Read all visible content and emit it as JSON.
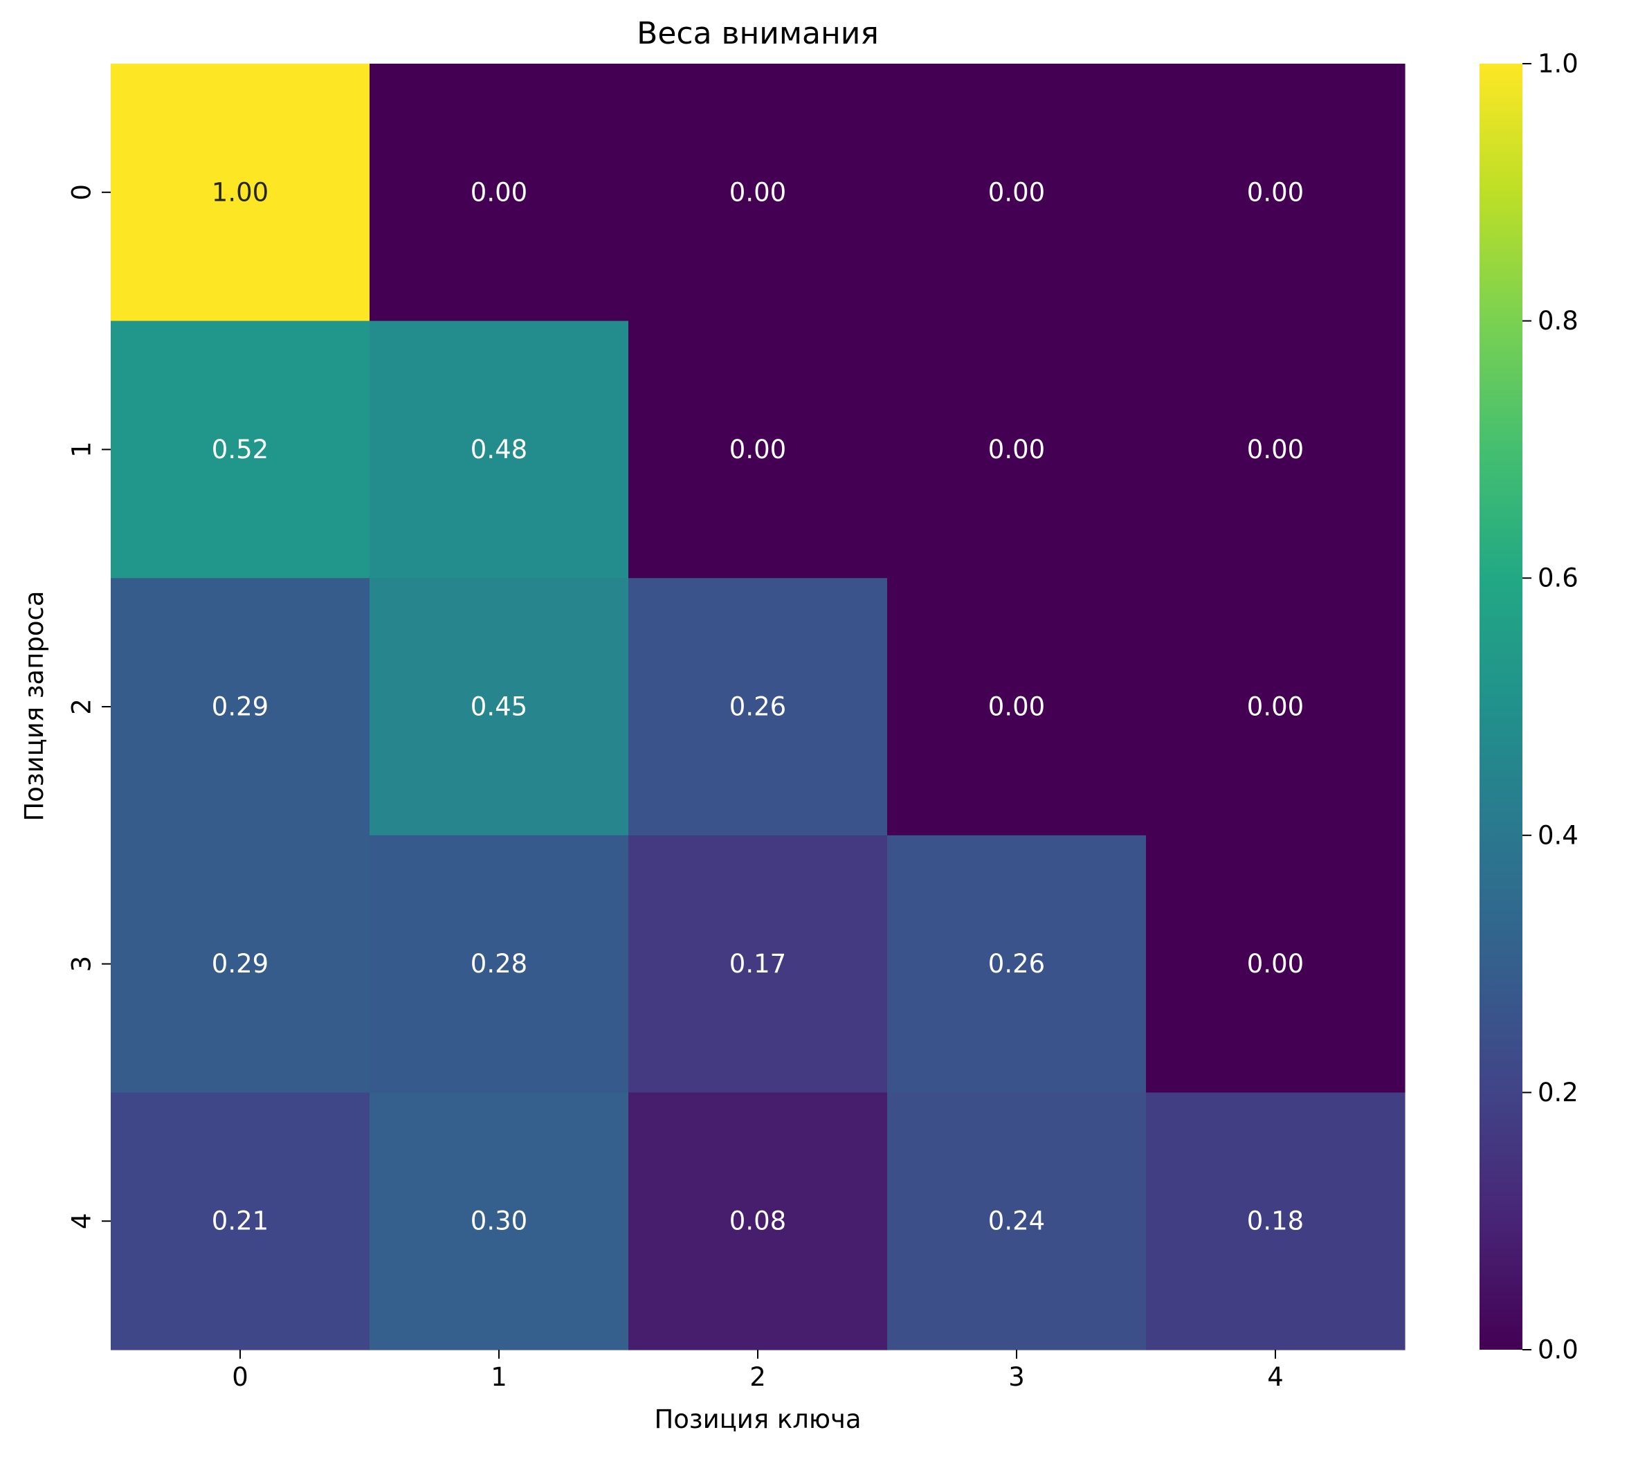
{
  "chart_data": {
    "type": "heatmap",
    "title": "Веса внимания",
    "xlabel": "Позиция ключа",
    "ylabel": "Позиция запроса",
    "x_categories": [
      "0",
      "1",
      "2",
      "3",
      "4"
    ],
    "y_categories": [
      "0",
      "1",
      "2",
      "3",
      "4"
    ],
    "values": [
      [
        1.0,
        0.0,
        0.0,
        0.0,
        0.0
      ],
      [
        0.52,
        0.48,
        0.0,
        0.0,
        0.0
      ],
      [
        0.29,
        0.45,
        0.26,
        0.0,
        0.0
      ],
      [
        0.29,
        0.28,
        0.17,
        0.26,
        0.0
      ],
      [
        0.21,
        0.3,
        0.08,
        0.24,
        0.18
      ]
    ],
    "colormap": "viridis",
    "vmin": 0.0,
    "vmax": 1.0,
    "colorbar_ticks": [
      "0.0",
      "0.2",
      "0.4",
      "0.6",
      "0.8",
      "1.0"
    ],
    "grid": false,
    "annotation_format": "0.00"
  }
}
